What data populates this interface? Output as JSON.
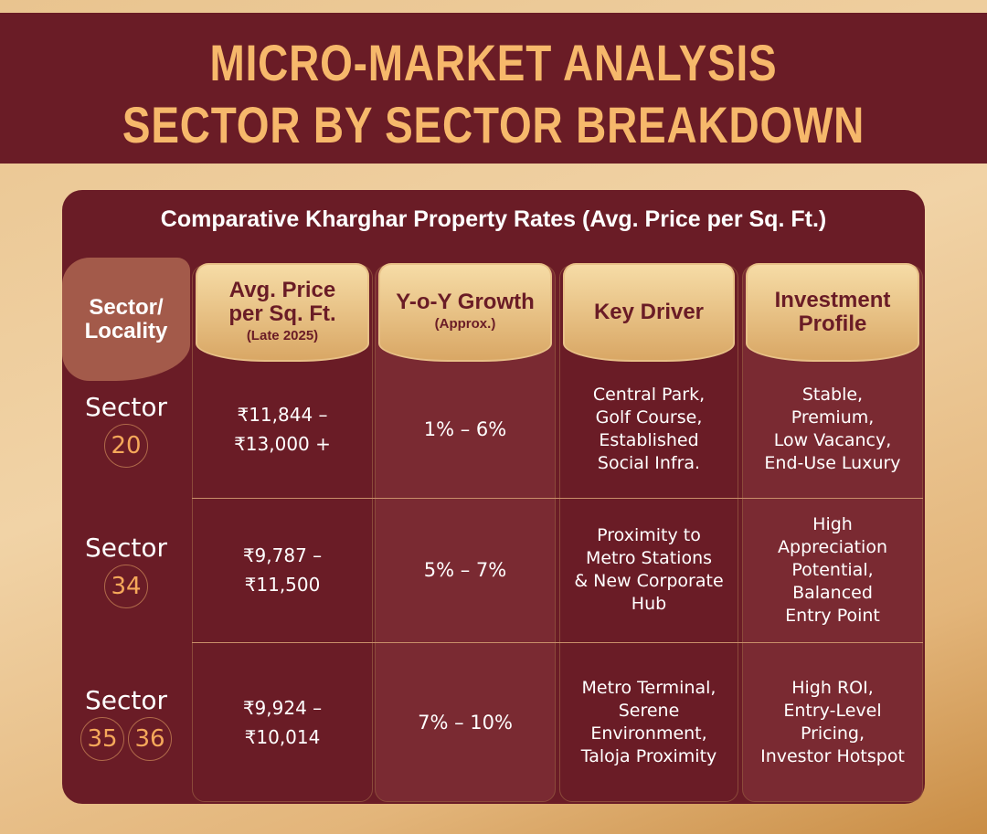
{
  "header": {
    "title": [
      "MICRO-MARKET ANALYSIS",
      "SECTOR BY SECTOR BREAKDOWN"
    ]
  },
  "table": {
    "title": "Comparative Kharghar Property Rates (Avg. Price per Sq. Ft.)",
    "columns": [
      {
        "lines": [
          "Sector/",
          "Locality"
        ]
      },
      {
        "lines": [
          "Avg. Price",
          "per Sq. Ft."
        ],
        "note": "(Late 2025)"
      },
      {
        "lines": [
          "Y-o-Y Growth"
        ],
        "note": "(Approx.)"
      },
      {
        "lines": [
          "Key Driver"
        ]
      },
      {
        "lines": [
          "Investment",
          "Profile"
        ]
      }
    ],
    "rows": [
      {
        "sector": "Sector",
        "numbers": [
          "20"
        ],
        "price": [
          "₹11,844 –",
          "₹13,000 +"
        ],
        "growth": "1% – 6%",
        "driver": [
          "Central Park,",
          "Golf Course,",
          "Established",
          "Social Infra."
        ],
        "profile": [
          "Stable,",
          "Premium,",
          "Low Vacancy,",
          "End-Use Luxury"
        ]
      },
      {
        "sector": "Sector",
        "numbers": [
          "34"
        ],
        "price": [
          "₹9,787 –",
          "₹11,500"
        ],
        "growth": "5% – 7%",
        "driver": [
          "Proximity to",
          "Metro Stations",
          "& New Corporate",
          "Hub"
        ],
        "profile": [
          "High",
          "Appreciation",
          "Potential,",
          "Balanced",
          "Entry Point"
        ]
      },
      {
        "sector": "Sector",
        "numbers": [
          "35",
          "36"
        ],
        "price": [
          "₹9,924 –",
          "₹10,014"
        ],
        "growth": "7% – 10%",
        "driver": [
          "Metro Terminal,",
          "Serene",
          "Environment,",
          "Taloja Proximity"
        ],
        "profile": [
          "High ROI,",
          "Entry-Level",
          "Pricing,",
          "Investor Hotspot"
        ]
      }
    ]
  }
}
